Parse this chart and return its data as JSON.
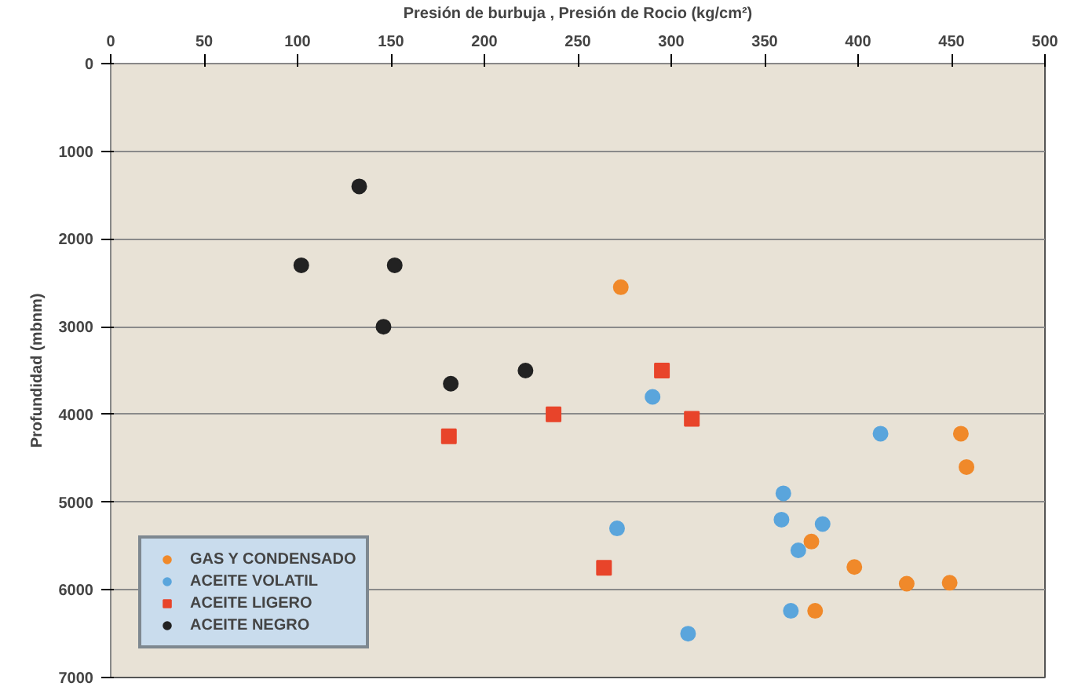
{
  "chart_data": {
    "type": "scatter",
    "xlabel": "Presión de burbuja , Presión de Rocio (kg/cm²)",
    "ylabel": "Profundidad (mbnm)",
    "xlim": [
      0,
      500
    ],
    "xticks": [
      0,
      50,
      100,
      150,
      200,
      250,
      300,
      350,
      400,
      450,
      500
    ],
    "ylim": [
      7000,
      0
    ],
    "yticks": [
      0,
      1000,
      2000,
      3000,
      4000,
      5000,
      6000,
      7000
    ],
    "grid": "y",
    "legend": "bottom left",
    "series": [
      {
        "name": "GAS Y CONDENSADO",
        "color": "#f0892a",
        "marker": "circle",
        "x": [
          273,
          455,
          458,
          375,
          398,
          426,
          449,
          377
        ],
        "values": [
          2550,
          4220,
          4600,
          5450,
          5740,
          5930,
          5920,
          6240
        ]
      },
      {
        "name": "ACEITE VOLATIL",
        "color": "#5aa5dc",
        "marker": "circle",
        "x": [
          290,
          412,
          360,
          359,
          381,
          368,
          271,
          364,
          309
        ],
        "values": [
          3800,
          4220,
          4900,
          5200,
          5250,
          5550,
          5300,
          6240,
          6500
        ]
      },
      {
        "name": "ACEITE LIGERO",
        "color": "#e8442a",
        "marker": "square",
        "x": [
          181,
          237,
          295,
          311,
          264
        ],
        "values": [
          4250,
          4000,
          3500,
          4050,
          5750
        ]
      },
      {
        "name": "ACEITE NEGRO",
        "color": "#222222",
        "marker": "circle",
        "x": [
          133,
          102,
          152,
          146,
          182,
          222
        ],
        "values": [
          1400,
          2300,
          2300,
          3000,
          3650,
          3500
        ]
      }
    ]
  }
}
